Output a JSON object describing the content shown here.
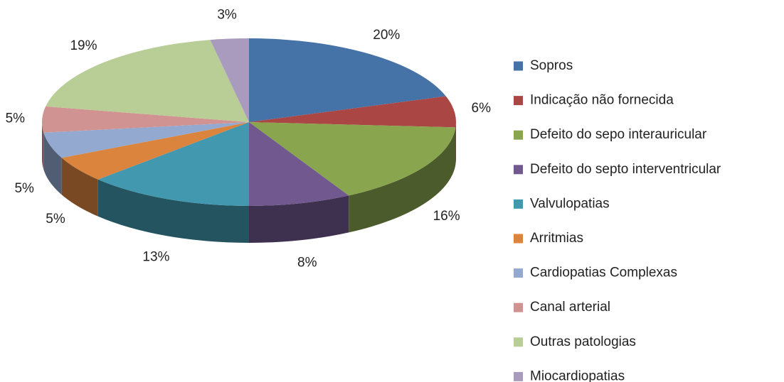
{
  "chart_data": {
    "type": "pie3d",
    "categories": [
      "Sopros",
      "Indicação não fornecida",
      "Defeito do sepo interauricular",
      "Defeito do septo interventricular",
      "Valvulopatias",
      "Arritmias",
      "Cardiopatias Complexas",
      "Canal arterial",
      "Outras patologias",
      "Miocardiopatias"
    ],
    "values": [
      20,
      6,
      16,
      8,
      13,
      5,
      5,
      5,
      19,
      3
    ],
    "value_labels": [
      "20%",
      "6%",
      "16%",
      "8%",
      "13%",
      "5%",
      "5%",
      "5%",
      "19%",
      "3%"
    ],
    "colors": [
      "#4572a7",
      "#aa4643",
      "#89a54e",
      "#71588f",
      "#4198af",
      "#db843d",
      "#93a9cf",
      "#d19392",
      "#b9cd96",
      "#a99bbd"
    ],
    "legend": "right"
  }
}
